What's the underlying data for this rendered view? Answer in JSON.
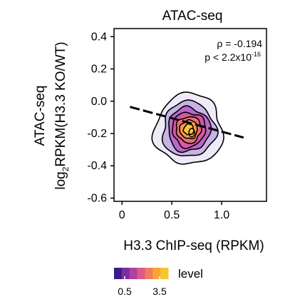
{
  "chart_data": {
    "type": "contour",
    "title": "ATAC-seq",
    "xlabel": "H3.3 ChIP-seq (RPKM)",
    "ylabel_line1": "ATAC-seq",
    "ylabel_line2": {
      "prefix": "log",
      "subscript": "2",
      "rest": "RPKM(H3.3 KO/WT)"
    },
    "xlim": [
      -0.08,
      1.45
    ],
    "ylim": [
      -0.62,
      0.45
    ],
    "xticks": [
      0,
      0.5,
      1.0
    ],
    "xtick_labels": [
      "0",
      "0.5",
      "1.0"
    ],
    "yticks": [
      0.4,
      0.2,
      0.0,
      -0.2,
      -0.4,
      -0.6
    ],
    "ytick_labels": [
      "0.4",
      "0.2",
      "0.0",
      "-0.2",
      "-0.4",
      "-0.6"
    ],
    "stats": {
      "rho_text": "ρ = -0.194",
      "p_prefix": "p < 2.2x10",
      "p_exponent": "-16"
    },
    "trend_line": {
      "x": [
        0.08,
        1.22
      ],
      "y": [
        -0.035,
        -0.225
      ]
    },
    "density": {
      "center": [
        0.67,
        -0.175
      ],
      "rx": 0.34,
      "ry": 0.22,
      "tilt": 0.12,
      "levels": [
        {
          "level": 0.5,
          "scale": 1.0,
          "color": "#eeeaf8"
        },
        {
          "level": 1.0,
          "scale": 0.78,
          "color": "#c7b3e6"
        },
        {
          "level": 1.5,
          "scale": 0.62,
          "color": "#b768c8"
        },
        {
          "level": 2.0,
          "scale": 0.49,
          "color": "#d45aa2"
        },
        {
          "level": 2.5,
          "scale": 0.37,
          "color": "#ec6f74"
        },
        {
          "level": 3.0,
          "scale": 0.26,
          "color": "#f89c47"
        },
        {
          "level": 3.5,
          "scale": 0.15,
          "color": "#fbc13e"
        }
      ],
      "inner_ring": {
        "x": 0.7,
        "y": -0.195
      }
    },
    "legend": {
      "title": "level",
      "tick_labels": [
        "0.5",
        "3.5"
      ],
      "colors": [
        "#3a1b8a",
        "#7b2f9e",
        "#b3419f",
        "#d95b88",
        "#ef7d5e",
        "#f8a33a",
        "#f8c52c"
      ]
    }
  }
}
